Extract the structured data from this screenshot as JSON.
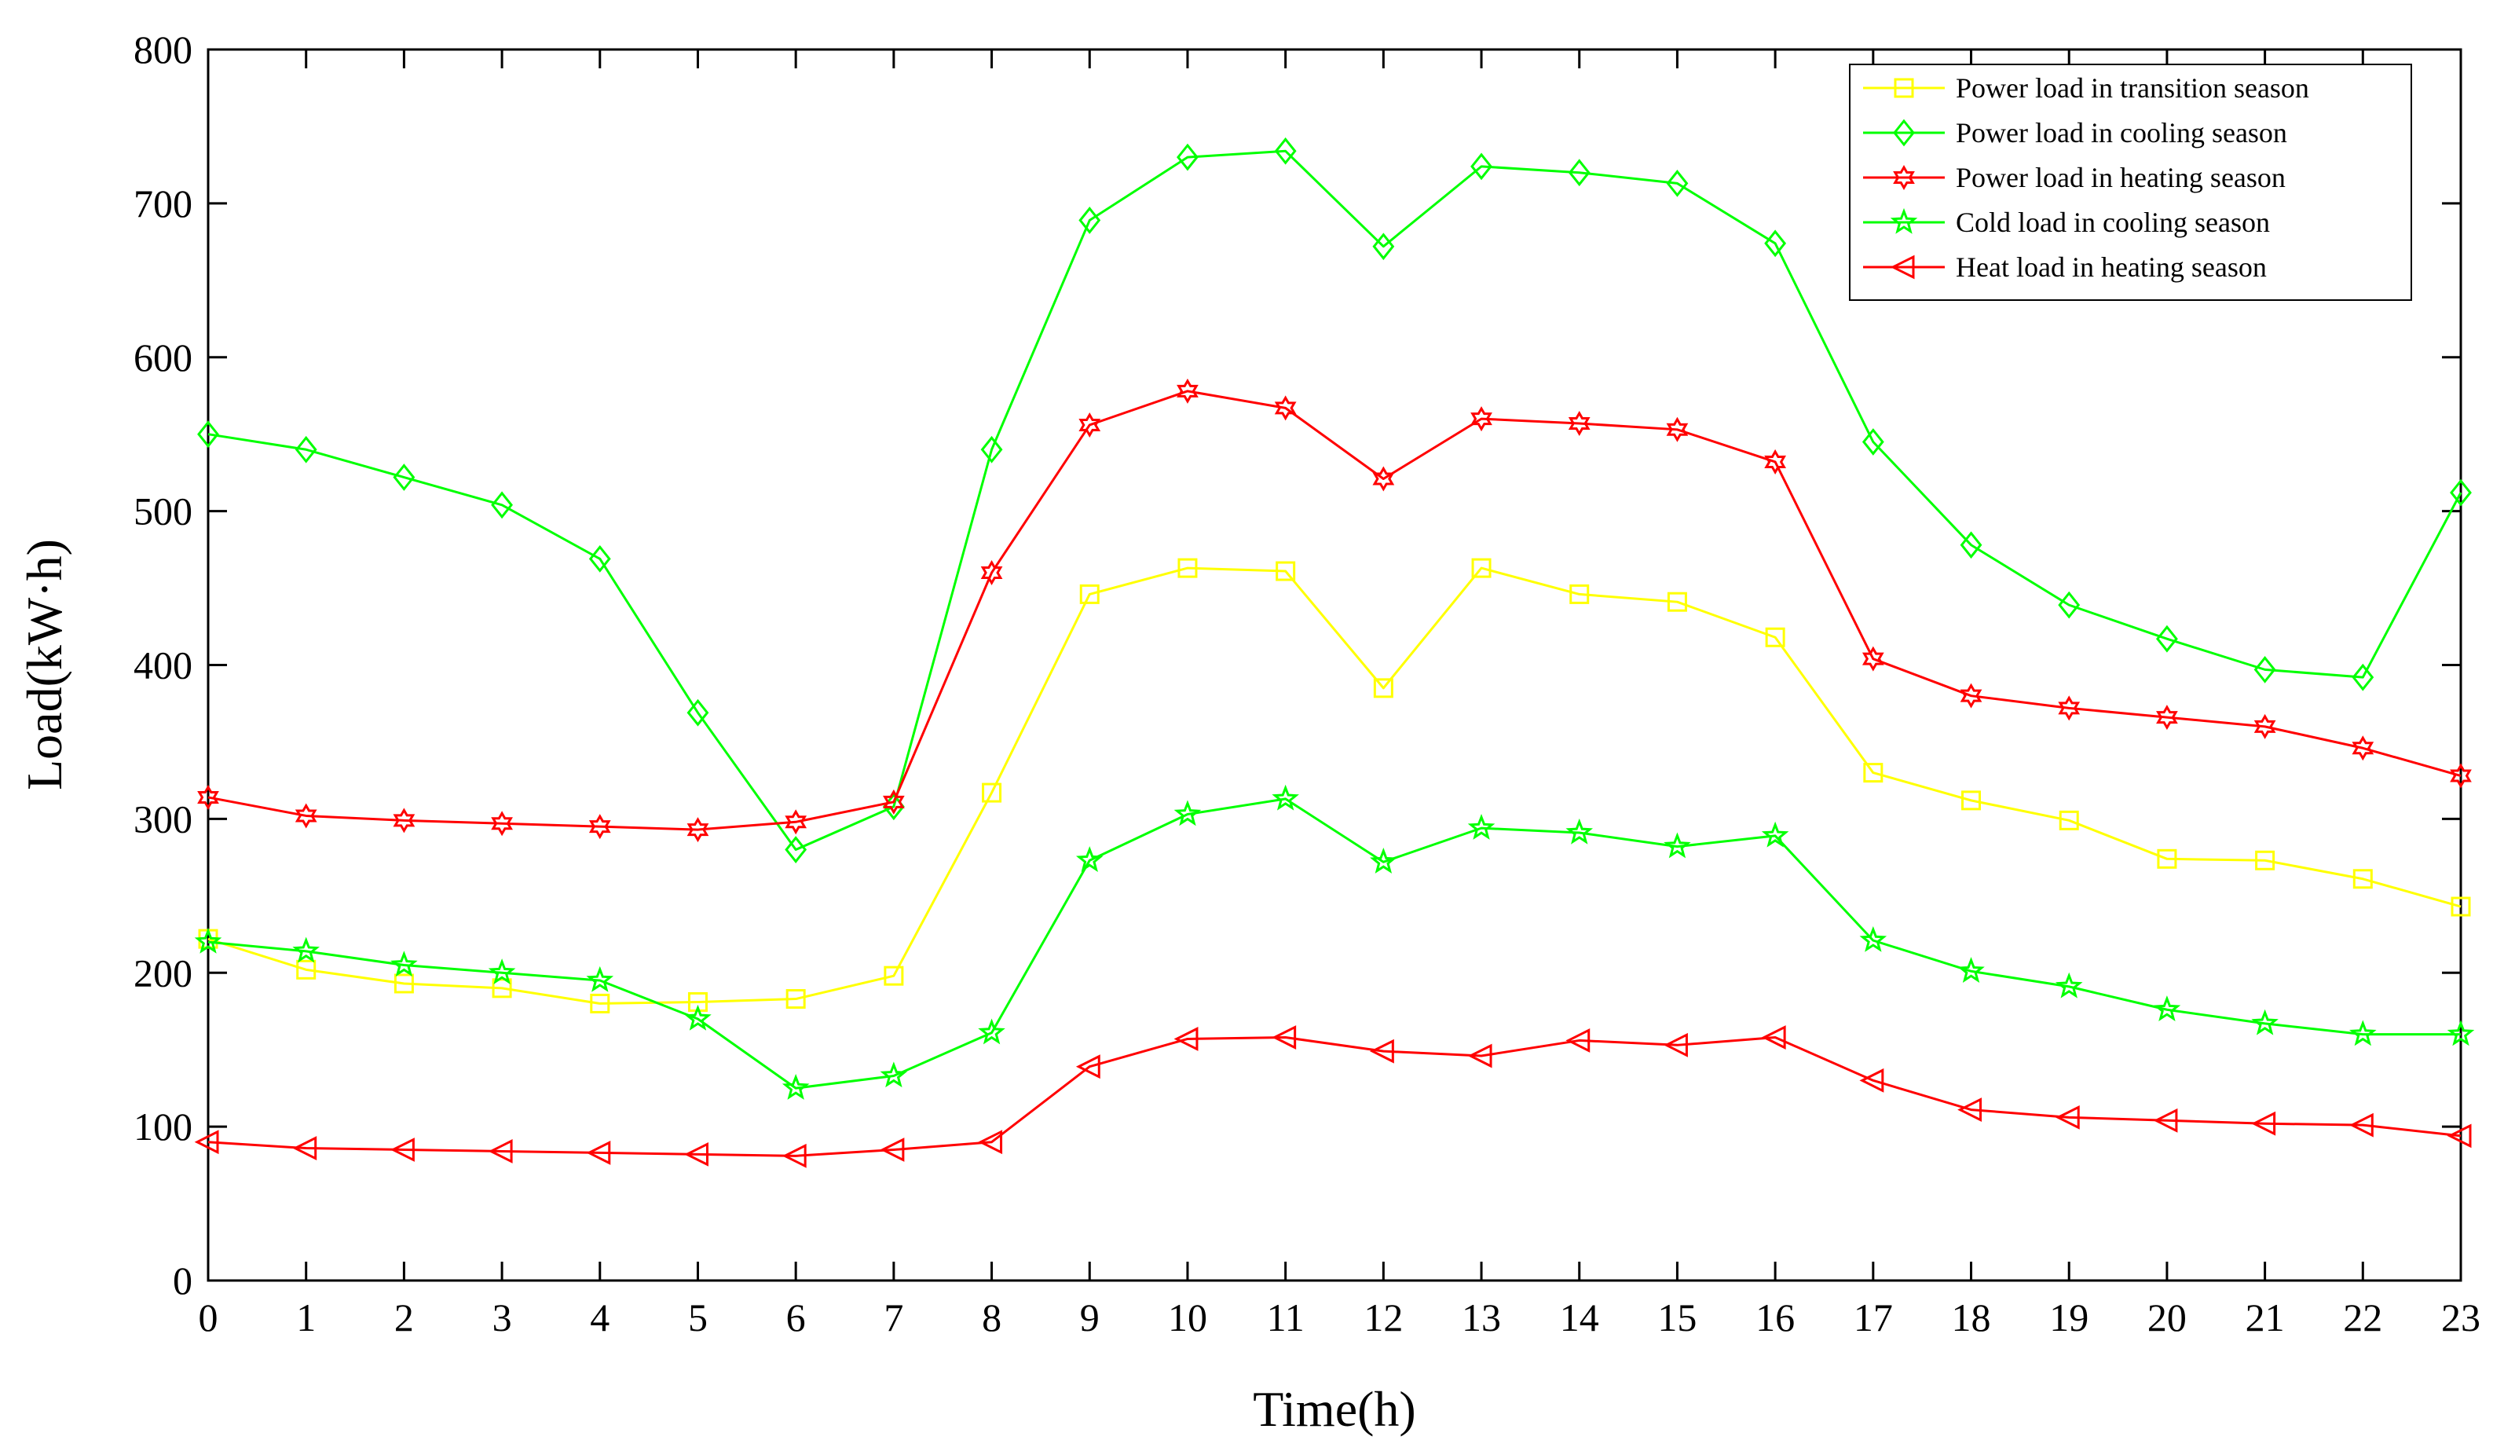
{
  "chart_data": {
    "type": "line",
    "title": "",
    "xlabel": "Time(h)",
    "ylabel": "Load(kW·h)",
    "xlim": [
      0,
      23
    ],
    "ylim": [
      0,
      800
    ],
    "x": [
      0,
      1,
      2,
      3,
      4,
      5,
      6,
      7,
      8,
      9,
      10,
      11,
      12,
      13,
      14,
      15,
      16,
      17,
      18,
      19,
      20,
      21,
      22,
      23
    ],
    "xticks": [
      "0",
      "1",
      "2",
      "3",
      "4",
      "5",
      "6",
      "7",
      "8",
      "9",
      "10",
      "11",
      "12",
      "13",
      "14",
      "15",
      "16",
      "17",
      "18",
      "19",
      "20",
      "21",
      "22",
      "23"
    ],
    "yticks": [
      "0",
      "100",
      "200",
      "300",
      "400",
      "500",
      "600",
      "700",
      "800"
    ],
    "grid": false,
    "legend_position": "top-right",
    "series": [
      {
        "name": "Power load in transition season",
        "color": "#ffff00",
        "marker": "square",
        "values": [
          222,
          202,
          193,
          190,
          180,
          181,
          183,
          198,
          317,
          446,
          463,
          461,
          385,
          463,
          446,
          441,
          418,
          330,
          312,
          299,
          274,
          273,
          261,
          243
        ]
      },
      {
        "name": "Power load in cooling season",
        "color": "#00ff00",
        "marker": "diamond",
        "values": [
          550,
          540,
          522,
          504,
          469,
          369,
          280,
          308,
          540,
          689,
          730,
          734,
          672,
          724,
          720,
          713,
          674,
          545,
          478,
          439,
          417,
          397,
          392,
          512
        ]
      },
      {
        "name": "Power load in heating season",
        "color": "#ff0000",
        "marker": "hexagram",
        "values": [
          314,
          302,
          299,
          297,
          295,
          293,
          298,
          311,
          460,
          556,
          578,
          567,
          521,
          560,
          557,
          553,
          532,
          404,
          380,
          372,
          366,
          360,
          346,
          328
        ]
      },
      {
        "name": "Cold load in cooling season",
        "color": "#00ff00",
        "marker": "pentagram",
        "values": [
          220,
          214,
          205,
          200,
          195,
          170,
          125,
          133,
          161,
          273,
          303,
          313,
          272,
          294,
          291,
          282,
          289,
          221,
          201,
          191,
          176,
          167,
          160,
          160
        ]
      },
      {
        "name": "Heat load in heating season",
        "color": "#ff0000",
        "marker": "triangle-left",
        "values": [
          90,
          86,
          85,
          84,
          83,
          82,
          81,
          85,
          90,
          139,
          157,
          158,
          149,
          146,
          156,
          153,
          158,
          130,
          111,
          106,
          104,
          102,
          101,
          94
        ]
      }
    ]
  }
}
